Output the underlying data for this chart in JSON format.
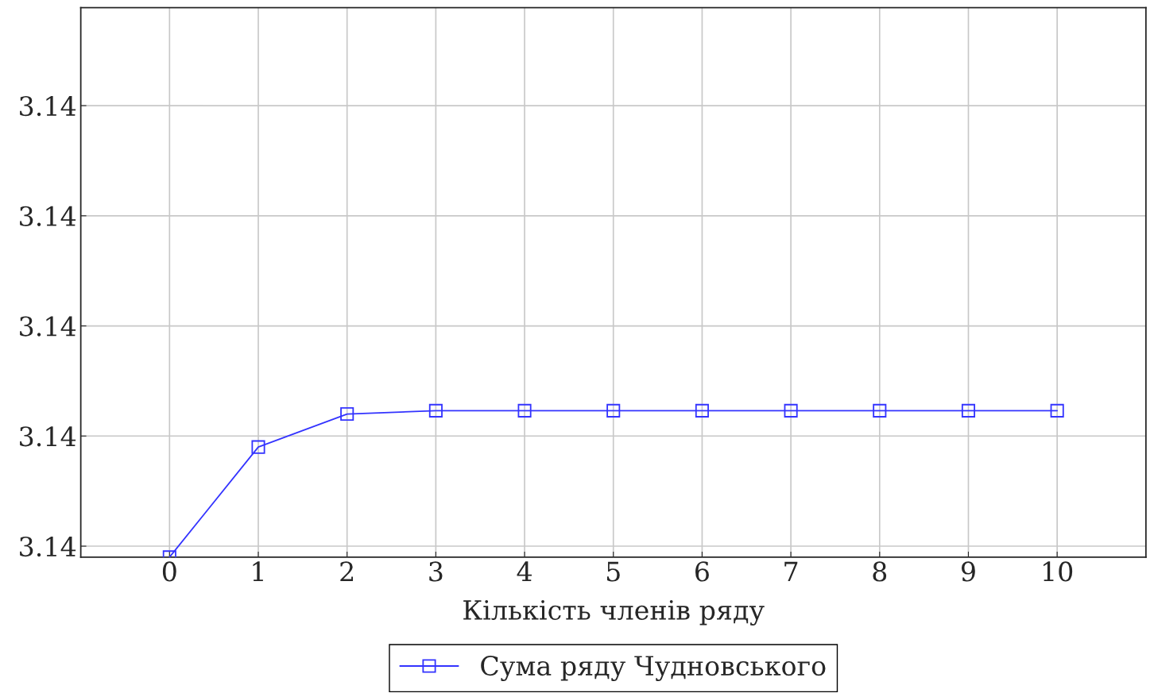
{
  "chart_data": {
    "type": "line",
    "xlabel": "Кількість членів ряду",
    "x": [
      0,
      1,
      2,
      3,
      4,
      5,
      6,
      7,
      8,
      9,
      10
    ],
    "series": [
      {
        "name": "Сума ряду Чудновського",
        "color": "#3333ff",
        "values": [
          3.141579,
          3.141589,
          3.141592,
          3.1415923,
          3.1415923,
          3.1415923,
          3.1415923,
          3.1415923,
          3.1415923,
          3.1415923,
          3.1415923
        ]
      }
    ],
    "xlim": [
      -1,
      11
    ],
    "xticks": [
      0,
      1,
      2,
      3,
      4,
      5,
      6,
      7,
      8,
      9,
      10
    ],
    "ylim": [
      3.141579,
      3.1416289
    ],
    "yticks": [
      {
        "value": 3.14158,
        "label": "3.14"
      },
      {
        "value": 3.14159,
        "label": "3.14"
      },
      {
        "value": 3.1416,
        "label": "3.14"
      },
      {
        "value": 3.14161,
        "label": "3.14"
      },
      {
        "value": 3.14162,
        "label": "3.14"
      }
    ],
    "grid": true,
    "legend": "bottom",
    "marker": "square",
    "line_style": "solid"
  }
}
